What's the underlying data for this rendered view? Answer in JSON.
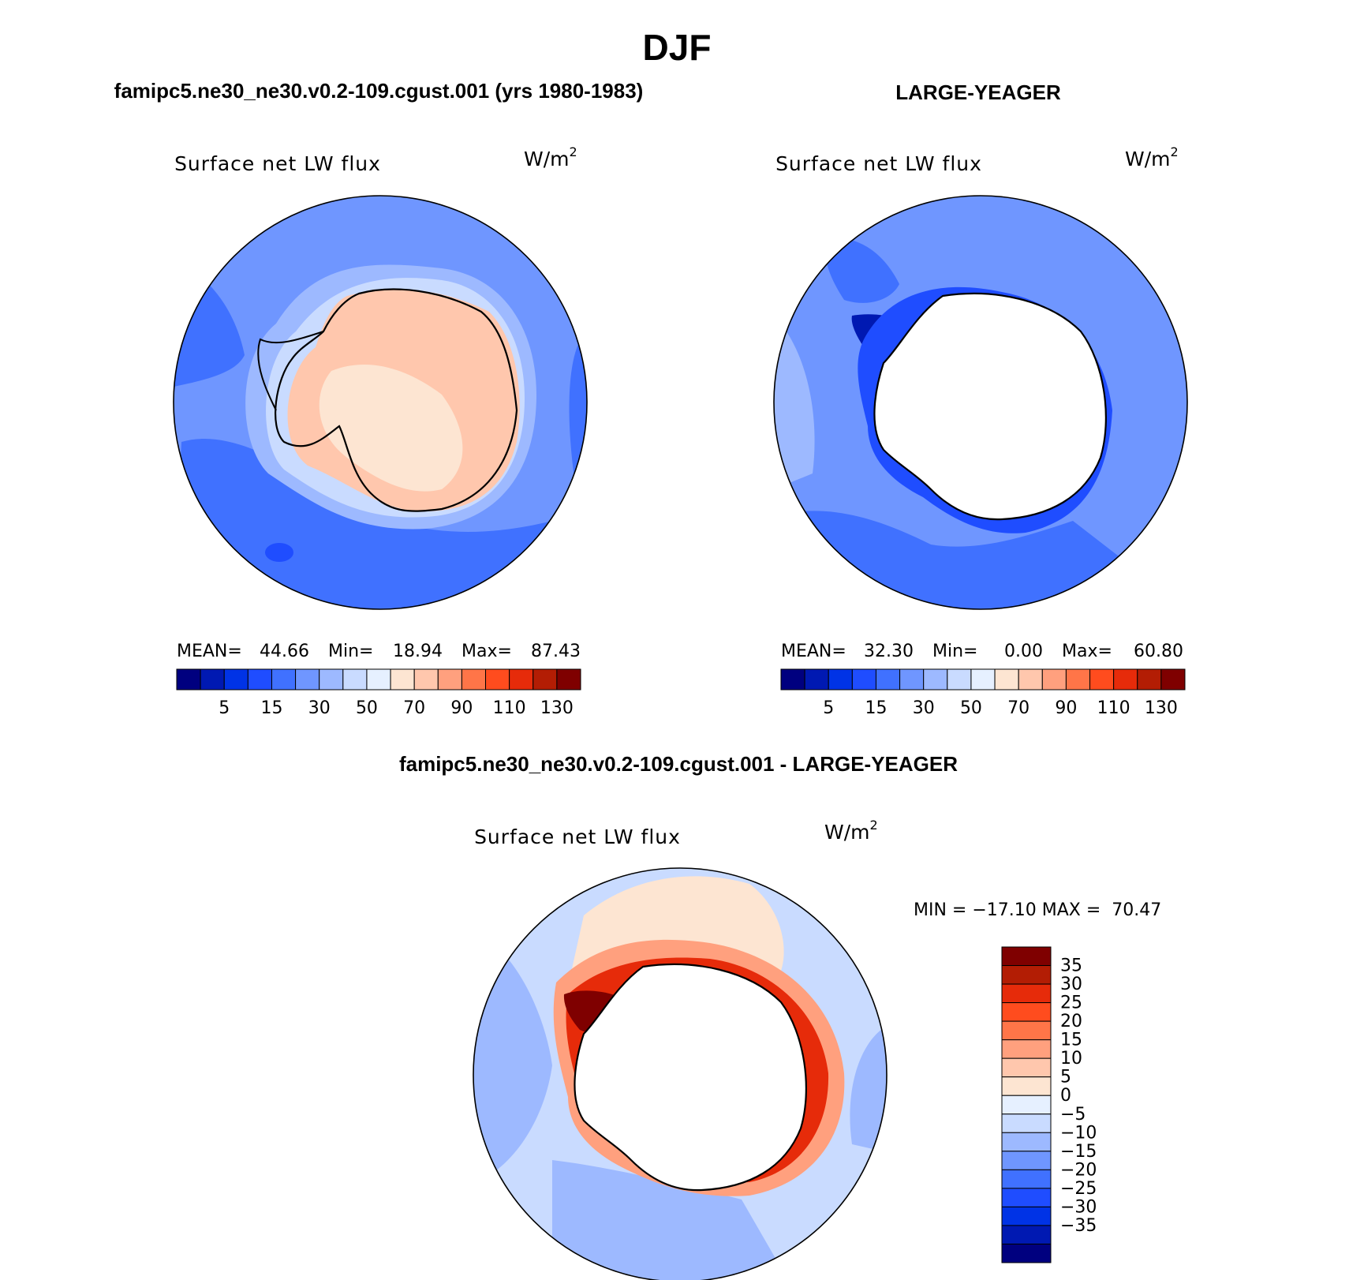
{
  "page": {
    "title": "DJF"
  },
  "colors": {
    "abs_scale": [
      "#00007f",
      "#0019b2",
      "#0033e6",
      "#1f4dff",
      "#4071ff",
      "#6f96ff",
      "#9db9ff",
      "#c9dbff",
      "#e6f0ff",
      "#fde5d2",
      "#ffc7ad",
      "#ffa07e",
      "#ff7548",
      "#ff4c1e",
      "#e62b0a",
      "#b31d04",
      "#7f0000"
    ],
    "diff_scale": [
      "#00007f",
      "#0019b2",
      "#0033e6",
      "#1f4dff",
      "#4071ff",
      "#6f96ff",
      "#9db9ff",
      "#c9dbff",
      "#e6f0ff",
      "#fde5d2",
      "#ffc7ad",
      "#ffa07e",
      "#ff7548",
      "#ff4c1e",
      "#e62b0a",
      "#b31d04",
      "#7f0000"
    ],
    "land_white": "#ffffff",
    "coast": "#000000"
  },
  "panels": {
    "model": {
      "header": "famipc5.ne30_ne30.v0.2-109.cgust.001 (yrs 1980-1983)",
      "variable": "Surface net LW flux",
      "units_base": "W/m",
      "units_exp": "2",
      "mean_label": "MEAN=",
      "mean_value": "44.66",
      "min_label": "Min=",
      "min_value": "18.94",
      "max_label": "Max=",
      "max_value": "87.43",
      "colorbar_ticks": [
        "5",
        "15",
        "30",
        "50",
        "70",
        "90",
        "110",
        "130"
      ]
    },
    "obs": {
      "header": "LARGE-YEAGER",
      "variable": "Surface net LW flux",
      "units_base": "W/m",
      "units_exp": "2",
      "mean_label": "MEAN=",
      "mean_value": "32.30",
      "min_label": "Min=",
      "min_value": "0.00",
      "max_label": "Max=",
      "max_value": "60.80",
      "colorbar_ticks": [
        "5",
        "15",
        "30",
        "50",
        "70",
        "90",
        "110",
        "130"
      ]
    },
    "diff": {
      "header": "famipc5.ne30_ne30.v0.2-109.cgust.001 - LARGE-YEAGER",
      "variable": "Surface net LW flux",
      "units_base": "W/m",
      "units_exp": "2",
      "minmax_text": "MIN = −17.10 MAX =  70.47",
      "colorbar_ticks": [
        "35",
        "30",
        "25",
        "20",
        "15",
        "10",
        "5",
        "0",
        "−5",
        "−10",
        "−15",
        "−20",
        "−25",
        "−30",
        "−35"
      ]
    }
  },
  "chart_data": [
    {
      "type": "heatmap",
      "projection": "south-polar-stereographic",
      "title": "famipc5.ne30_ne30.v0.2-109.cgust.001 (yrs 1980-1983)",
      "variable": "Surface net LW flux",
      "units": "W/m2",
      "contour_levels": [
        5,
        10,
        15,
        20,
        30,
        40,
        50,
        60,
        70,
        80,
        90,
        100,
        110,
        120,
        130,
        140
      ],
      "stats": {
        "mean": 44.66,
        "min": 18.94,
        "max": 87.43
      }
    },
    {
      "type": "heatmap",
      "projection": "south-polar-stereographic",
      "title": "LARGE-YEAGER",
      "variable": "Surface net LW flux",
      "units": "W/m2",
      "contour_levels": [
        5,
        10,
        15,
        20,
        30,
        40,
        50,
        60,
        70,
        80,
        90,
        100,
        110,
        120,
        130,
        140
      ],
      "stats": {
        "mean": 32.3,
        "min": 0.0,
        "max": 60.8
      }
    },
    {
      "type": "heatmap",
      "projection": "south-polar-stereographic",
      "title": "famipc5.ne30_ne30.v0.2-109.cgust.001 - LARGE-YEAGER",
      "variable": "Surface net LW flux",
      "units": "W/m2",
      "contour_levels": [
        -35,
        -30,
        -25,
        -20,
        -15,
        -10,
        -5,
        0,
        5,
        10,
        15,
        20,
        25,
        30,
        35
      ],
      "stats": {
        "min": -17.1,
        "max": 70.47
      }
    }
  ]
}
